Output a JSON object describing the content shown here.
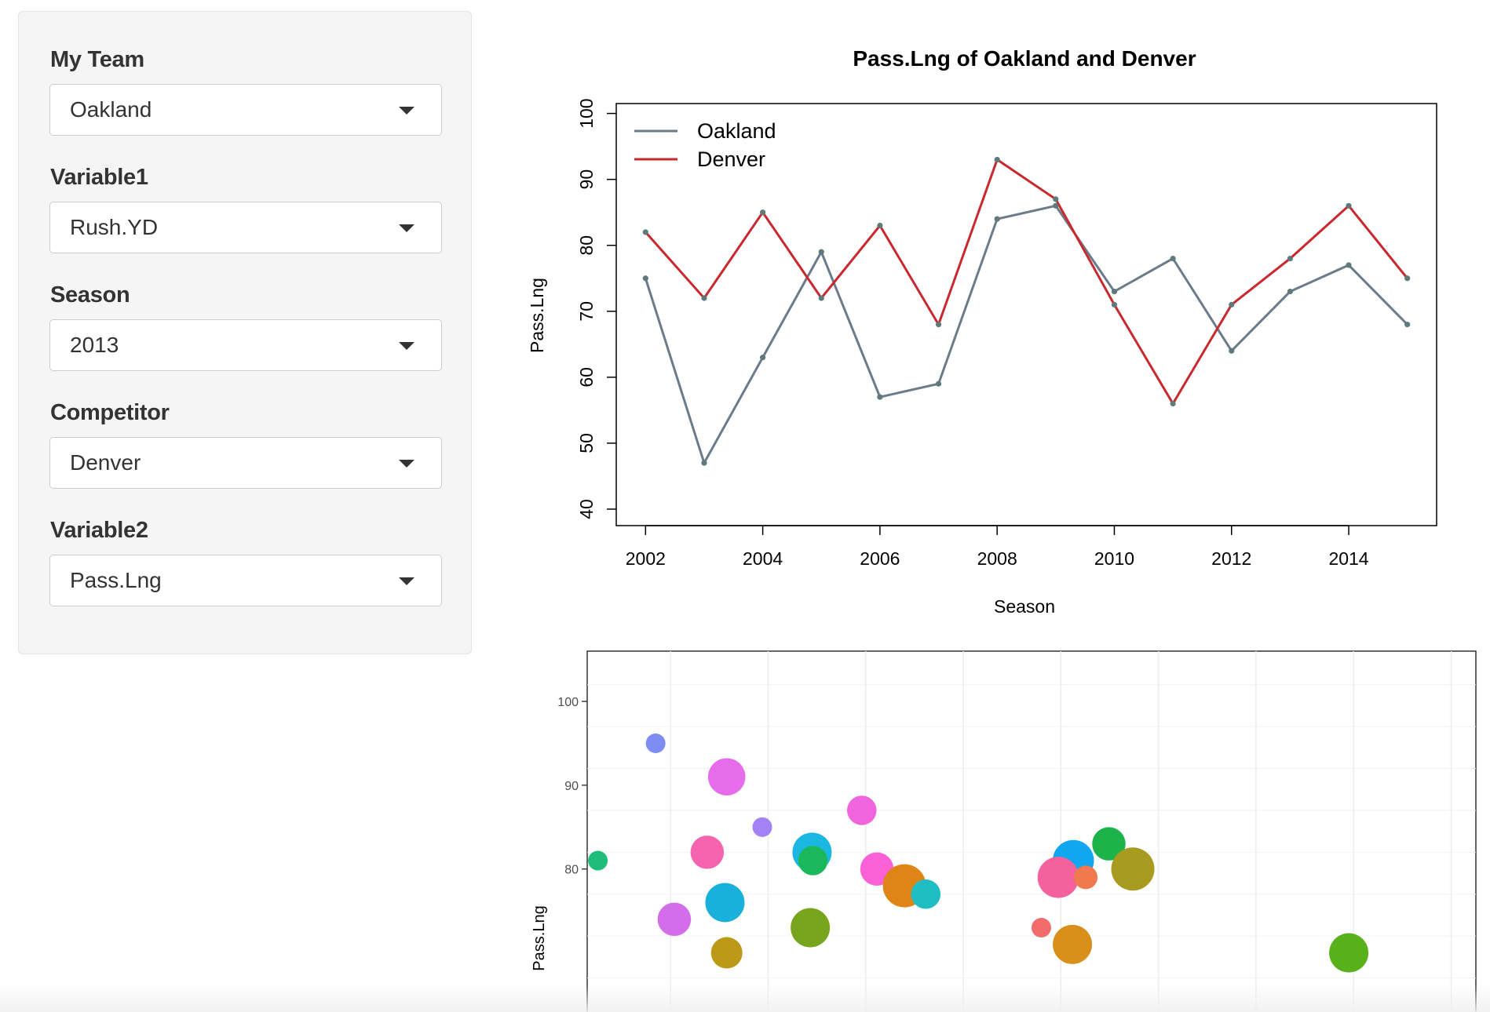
{
  "sidebar": {
    "controls": [
      {
        "label": "My Team",
        "value": "Oakland"
      },
      {
        "label": "Variable1",
        "value": "Rush.YD"
      },
      {
        "label": "Season",
        "value": "2013"
      },
      {
        "label": "Competitor",
        "value": "Denver"
      },
      {
        "label": "Variable2",
        "value": "Pass.Lng"
      }
    ]
  },
  "chart_data": [
    {
      "type": "line",
      "title": "Pass.Lng of Oakland and Denver",
      "xlabel": "Season",
      "ylabel": "Pass.Lng",
      "xlim": [
        2001.5,
        2015.5
      ],
      "ylim": [
        37.5,
        101.5
      ],
      "xticks": [
        2002,
        2004,
        2006,
        2008,
        2010,
        2012,
        2014
      ],
      "yticks": [
        40,
        50,
        60,
        70,
        80,
        90,
        100
      ],
      "legend_position": "top-left",
      "x": [
        2002,
        2003,
        2004,
        2005,
        2006,
        2007,
        2008,
        2009,
        2010,
        2011,
        2012,
        2013,
        2014,
        2015
      ],
      "series": [
        {
          "name": "Oakland",
          "color": "#6b7b8a",
          "values": [
            75,
            47,
            63,
            79,
            57,
            59,
            84,
            86,
            73,
            78,
            64,
            73,
            77,
            68
          ]
        },
        {
          "name": "Denver",
          "color": "#c9282f",
          "values": [
            82,
            72,
            85,
            72,
            83,
            68,
            93,
            87,
            71,
            56,
            71,
            78,
            86,
            75
          ]
        }
      ],
      "point_color": "#5f7a7a"
    },
    {
      "type": "scatter",
      "ylabel": "Pass.Lng",
      "yticks": [
        80,
        90,
        100
      ],
      "xlim": [
        0,
        1
      ],
      "ylim": [
        62,
        106
      ],
      "grid": true,
      "points": [
        {
          "x": 0.077,
          "y": 95,
          "size": 10,
          "color": "#7f8cf3"
        },
        {
          "x": 0.157,
          "y": 91,
          "size": 19,
          "color": "#e66ceb"
        },
        {
          "x": 0.197,
          "y": 85,
          "size": 10,
          "color": "#a282f5"
        },
        {
          "x": 0.309,
          "y": 87,
          "size": 15,
          "color": "#f064de"
        },
        {
          "x": 0.012,
          "y": 81,
          "size": 10,
          "color": "#1fbc7a"
        },
        {
          "x": 0.135,
          "y": 82,
          "size": 17,
          "color": "#f664b0"
        },
        {
          "x": 0.253,
          "y": 82,
          "size": 20,
          "color": "#1ab8e0"
        },
        {
          "x": 0.254,
          "y": 81,
          "size": 15,
          "color": "#1ab85a"
        },
        {
          "x": 0.326,
          "y": 80,
          "size": 17,
          "color": "#fb61d7"
        },
        {
          "x": 0.357,
          "y": 78,
          "size": 22,
          "color": "#df8417"
        },
        {
          "x": 0.381,
          "y": 77,
          "size": 15,
          "color": "#1fbec4"
        },
        {
          "x": 0.547,
          "y": 81,
          "size": 21,
          "color": "#11a6f0"
        },
        {
          "x": 0.53,
          "y": 79,
          "size": 21,
          "color": "#f5619c"
        },
        {
          "x": 0.561,
          "y": 79,
          "size": 12,
          "color": "#f07a4e"
        },
        {
          "x": 0.587,
          "y": 83,
          "size": 17,
          "color": "#1bb34a"
        },
        {
          "x": 0.614,
          "y": 80,
          "size": 22,
          "color": "#a89b1f"
        },
        {
          "x": 0.155,
          "y": 76,
          "size": 20,
          "color": "#19b1dc"
        },
        {
          "x": 0.098,
          "y": 74,
          "size": 17,
          "color": "#d36de9"
        },
        {
          "x": 0.251,
          "y": 73,
          "size": 20,
          "color": "#78a51e"
        },
        {
          "x": 0.511,
          "y": 73,
          "size": 10,
          "color": "#f36c6c"
        },
        {
          "x": 0.546,
          "y": 71,
          "size": 20,
          "color": "#d9901a"
        },
        {
          "x": 0.157,
          "y": 70,
          "size": 16,
          "color": "#bc9a18"
        },
        {
          "x": 0.857,
          "y": 70,
          "size": 20,
          "color": "#58b01a"
        }
      ]
    }
  ]
}
